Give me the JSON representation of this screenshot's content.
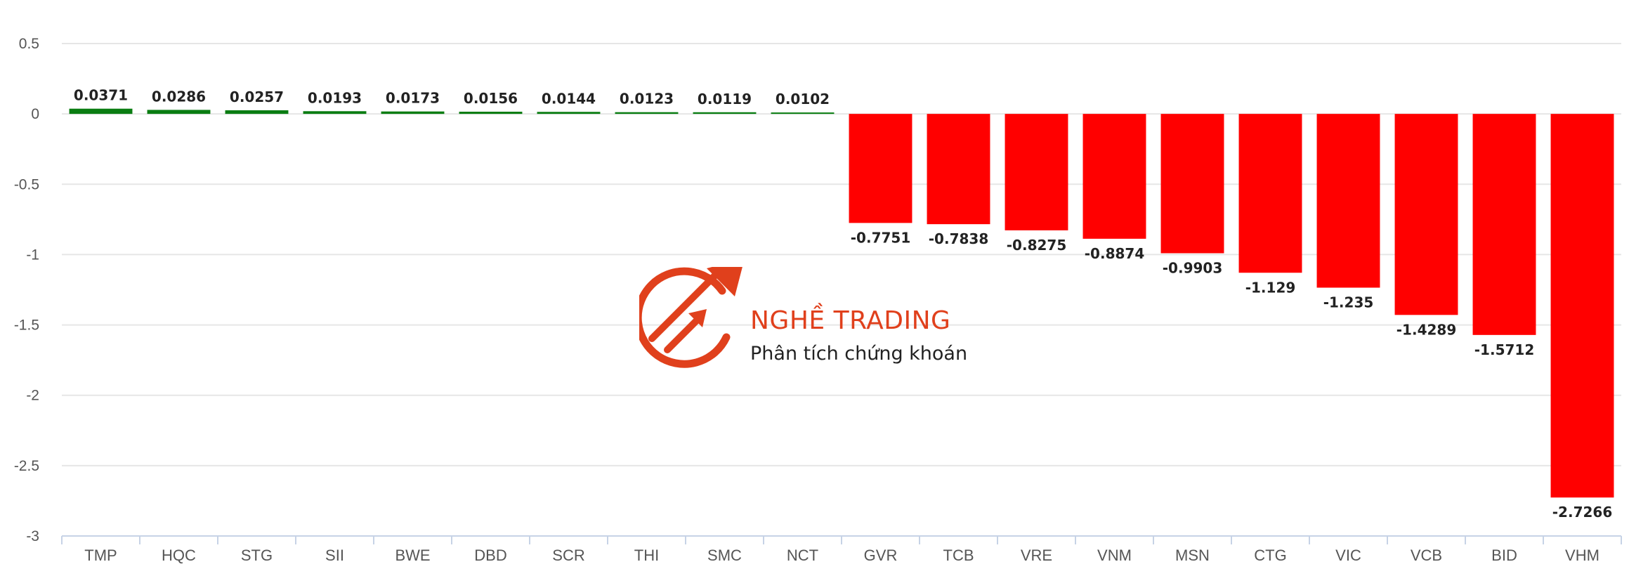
{
  "chart_data": {
    "type": "bar",
    "categories": [
      "TMP",
      "HQC",
      "STG",
      "SII",
      "BWE",
      "DBD",
      "SCR",
      "THI",
      "SMC",
      "NCT",
      "GVR",
      "TCB",
      "VRE",
      "VNM",
      "MSN",
      "CTG",
      "VIC",
      "VCB",
      "BID",
      "VHM"
    ],
    "values": [
      0.0371,
      0.0286,
      0.0257,
      0.0193,
      0.0173,
      0.0156,
      0.0144,
      0.0123,
      0.0119,
      0.0102,
      -0.7751,
      -0.7838,
      -0.8275,
      -0.8874,
      -0.9903,
      -1.129,
      -1.235,
      -1.4289,
      -1.5712,
      -2.7266
    ],
    "value_labels": [
      "0.0371",
      "0.0286",
      "0.0257",
      "0.0193",
      "0.0173",
      "0.0156",
      "0.0144",
      "0.0123",
      "0.0119",
      "0.0102",
      "-0.7751",
      "-0.7838",
      "-0.8275",
      "-0.8874",
      "-0.9903",
      "-1.129",
      "-1.235",
      "-1.4289",
      "-1.5712",
      "-2.7266"
    ],
    "y_ticks": [
      0.5,
      0,
      -0.5,
      -1,
      -1.5,
      -2,
      -2.5,
      -3
    ],
    "y_tick_labels": [
      "0.5",
      "0",
      "-0.5",
      "-1",
      "-1.5",
      "-2",
      "-2.5",
      "-3"
    ],
    "ylim": [
      -3,
      0.5
    ],
    "grid": true,
    "legend": "none",
    "colors": {
      "positive": "#0a7d12",
      "negative": "#ff0000",
      "grid": "#e6e6e6",
      "axis": "#c7d3e6"
    }
  },
  "watermark": {
    "title": "NGHỀ TRADING",
    "subtitle": "Phân tích chứng khoán",
    "logo_icon": "rising-arrows-circle-logo",
    "color": "#e0401c"
  }
}
